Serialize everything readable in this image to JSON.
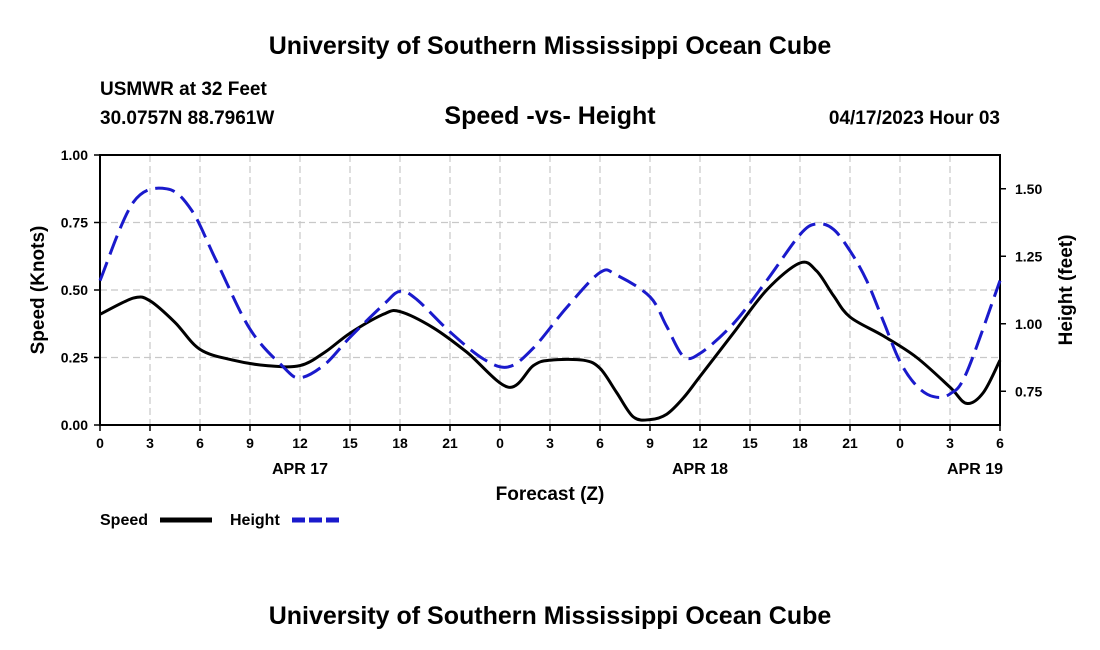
{
  "chart_data": {
    "type": "line",
    "title": "University of Southern Mississippi Ocean Cube",
    "footer_title": "University of Southern Mississippi Ocean Cube",
    "station": "USMWR at 32 Feet",
    "location": "30.0757N  88.7961W",
    "subtitle": "Speed -vs- Height",
    "timestamp": "04/17/2023 Hour 03",
    "xlabel": "Forecast (Z)",
    "ylabel_left": "Speed (Knots)",
    "ylabel_right": "Height (feet)",
    "x_tick_labels": [
      "0",
      "3",
      "6",
      "9",
      "12",
      "15",
      "18",
      "21",
      "0",
      "3",
      "6",
      "9",
      "12",
      "15",
      "18",
      "21",
      "0",
      "3",
      "6"
    ],
    "x_range": [
      0,
      54
    ],
    "date_labels": [
      {
        "label": "APR 17",
        "hour": 12
      },
      {
        "label": "APR 18",
        "hour": 36
      },
      {
        "label": "APR 19",
        "hour": 52.5
      }
    ],
    "y_left_range": [
      0,
      1
    ],
    "y_left_ticks": [
      "0.00",
      "0.25",
      "0.50",
      "0.75",
      "1.00"
    ],
    "y_right_range": [
      0.625,
      1.625
    ],
    "y_right_ticks": [
      "0.75",
      "1.00",
      "1.25",
      "1.50"
    ],
    "y_right_tick_values": [
      0.75,
      1.0,
      1.25,
      1.5
    ],
    "legend": [
      {
        "name": "Speed",
        "color": "#000000",
        "dashed": false
      },
      {
        "name": "Height",
        "color": "#1a1acc",
        "dashed": true
      }
    ],
    "series": [
      {
        "name": "Speed",
        "axis": "left",
        "color": "#000000",
        "x": [
          0,
          2,
          3,
          4.5,
          6,
          8,
          10,
          12,
          13.5,
          15,
          17,
          18,
          20,
          22,
          24.5,
          26,
          27,
          29,
          30,
          31,
          32,
          33,
          34,
          35,
          36,
          38,
          40,
          42,
          43,
          44,
          45,
          47,
          49,
          51,
          52,
          53,
          54
        ],
        "values": [
          0.41,
          0.47,
          0.46,
          0.38,
          0.28,
          0.24,
          0.22,
          0.22,
          0.27,
          0.34,
          0.41,
          0.42,
          0.36,
          0.27,
          0.14,
          0.22,
          0.24,
          0.24,
          0.21,
          0.12,
          0.03,
          0.02,
          0.04,
          0.1,
          0.18,
          0.34,
          0.5,
          0.6,
          0.57,
          0.48,
          0.4,
          0.33,
          0.25,
          0.14,
          0.08,
          0.12,
          0.24
        ]
      },
      {
        "name": "Height",
        "axis": "right",
        "color": "#1a1acc",
        "x": [
          0,
          2,
          4,
          5.5,
          7,
          9,
          11,
          12,
          13.5,
          15,
          17,
          18,
          19,
          21,
          23,
          24.5,
          26,
          28,
          30,
          31,
          33,
          34,
          35,
          36,
          38,
          40,
          42,
          43,
          44,
          45,
          46,
          47,
          48,
          49,
          50,
          51,
          52,
          54
        ],
        "values": [
          1.16,
          1.45,
          1.5,
          1.42,
          1.23,
          0.98,
          0.84,
          0.8,
          0.85,
          0.95,
          1.07,
          1.12,
          1.09,
          0.97,
          0.87,
          0.84,
          0.91,
          1.06,
          1.19,
          1.18,
          1.1,
          0.99,
          0.88,
          0.89,
          1.0,
          1.16,
          1.33,
          1.37,
          1.35,
          1.27,
          1.16,
          1.01,
          0.86,
          0.77,
          0.73,
          0.74,
          0.82,
          1.16
        ]
      }
    ]
  }
}
